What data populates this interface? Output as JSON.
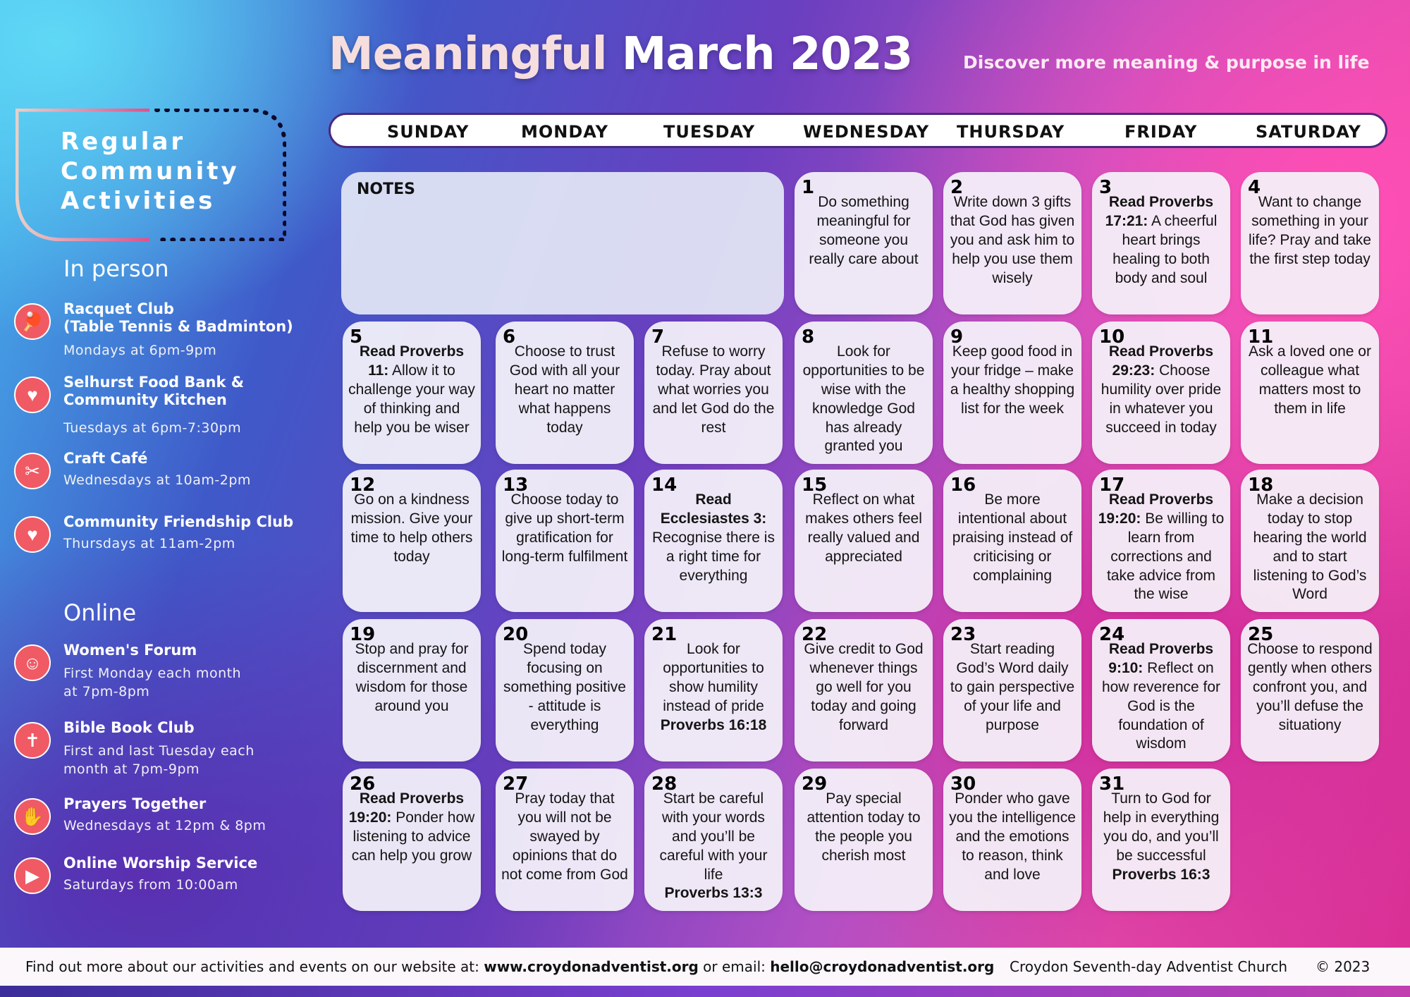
{
  "title_part1": "Meaningful",
  "title_part2": "March 2023",
  "subtitle": "Discover more meaning & purpose in life",
  "days": [
    "SUNDAY",
    "MONDAY",
    "TUESDAY",
    "WEDNESDAY",
    "THURSDAY",
    "FRIDAY",
    "SATURDAY"
  ],
  "notes_label": "NOTES",
  "sidebar": {
    "box_title": [
      "Regular",
      "Community",
      "Activities"
    ],
    "in_person": "In person",
    "online": "Online",
    "activities": [
      {
        "name": "Racquet Club\n(Table Tennis & Badminton)",
        "time": "Mondays at 6pm-9pm",
        "icon": "racquet-icon",
        "glyph": "🏓"
      },
      {
        "name": "Selhurst Food Bank &\nCommunity Kitchen",
        "time": "Tuesdays at 6pm-7:30pm",
        "icon": "food-basket-icon",
        "glyph": "♥"
      },
      {
        "name": "Craft Café",
        "time": "Wednesdays at 10am-2pm",
        "icon": "scissors-icon",
        "glyph": "✂"
      },
      {
        "name": "Community Friendship Club",
        "time": "Thursdays at 11am-2pm",
        "icon": "friendship-icon",
        "glyph": "♥"
      },
      {
        "name": "Women's Forum",
        "time": "First Monday each month\nat 7pm-8pm",
        "icon": "meditation-icon",
        "glyph": "☺"
      },
      {
        "name": "Bible Book Club",
        "time": "First and last Tuesday each\nmonth at 7pm-9pm",
        "icon": "bible-icon",
        "glyph": "✝"
      },
      {
        "name": "Prayers Together",
        "time": "Wednesdays at 12pm & 8pm",
        "icon": "praying-hands-icon",
        "glyph": "✋"
      },
      {
        "name": "Online Worship Service",
        "time": "Saturdays from 10:00am",
        "icon": "youtube-icon",
        "glyph": "▶"
      }
    ]
  },
  "cells": [
    {
      "n": "1",
      "b": "",
      "t": "Do something meaningful for someone you really care about",
      "e": ""
    },
    {
      "n": "2",
      "b": "",
      "t": "Write down 3 gifts that God has given you and ask him to help you use them wisely",
      "e": ""
    },
    {
      "n": "3",
      "b": "Read Proverbs 17:21:",
      "t": "A cheerful heart brings healing to both body and soul",
      "e": ""
    },
    {
      "n": "4",
      "b": "",
      "t": "Want to change something in your life? Pray and take the first step today",
      "e": ""
    },
    {
      "n": "5",
      "b": "Read Proverbs 11:",
      "t": "Allow it to challenge your way of thinking and help you be wiser",
      "e": ""
    },
    {
      "n": "6",
      "b": "",
      "t": "Choose to trust God with all your heart no matter what happens today",
      "e": ""
    },
    {
      "n": "7",
      "b": "",
      "t": "Refuse to worry today. Pray about what worries you and let God do the rest",
      "e": ""
    },
    {
      "n": "8",
      "b": "",
      "t": "Look for opportunities to be wise with the knowledge God has already granted you",
      "e": ""
    },
    {
      "n": "9",
      "b": "",
      "t": "Keep good food in your fridge – make a healthy shopping list for the week",
      "e": ""
    },
    {
      "n": "10",
      "b": "Read Proverbs 29:23:",
      "t": "Choose humility over pride in whatever you succeed in today",
      "e": ""
    },
    {
      "n": "11",
      "b": "",
      "t": "Ask a loved one or colleague what matters most to them in life",
      "e": ""
    },
    {
      "n": "12",
      "b": "",
      "t": "Go on a kindness mission. Give your time to help others today",
      "e": ""
    },
    {
      "n": "13",
      "b": "",
      "t": "Choose today to give up short-term gratification for long-term fulfilment",
      "e": ""
    },
    {
      "n": "14",
      "b": "Read Ecclesiastes 3:",
      "t": "Recognise there is a right time for everything",
      "e": ""
    },
    {
      "n": "15",
      "b": "",
      "t": "Reflect on what makes others feel really valued and appreciated",
      "e": ""
    },
    {
      "n": "16",
      "b": "",
      "t": "Be more intentional about praising instead of criticising or complaining",
      "e": ""
    },
    {
      "n": "17",
      "b": "Read Proverbs 19:20:",
      "t": "Be willing to learn from corrections and take advice from the wise",
      "e": ""
    },
    {
      "n": "18",
      "b": "",
      "t": "Make a decision today to stop hearing the world and to start listening to God’s Word",
      "e": ""
    },
    {
      "n": "19",
      "b": "",
      "t": "Stop and pray for discernment and wisdom for those around you",
      "e": ""
    },
    {
      "n": "20",
      "b": "",
      "t": "Spend today focusing on something positive - attitude is everything",
      "e": ""
    },
    {
      "n": "21",
      "b": "",
      "t": "Look for opportunities to show humility instead of pride",
      "e": "Proverbs 16:18"
    },
    {
      "n": "22",
      "b": "",
      "t": "Give credit to God whenever things go well for you today and going forward",
      "e": ""
    },
    {
      "n": "23",
      "b": "",
      "t": "Start reading God’s Word daily to gain perspective of your life and purpose",
      "e": ""
    },
    {
      "n": "24",
      "b": "Read Proverbs 9:10:",
      "t": "Reflect on how reverence for God is the foundation of wisdom",
      "e": ""
    },
    {
      "n": "25",
      "b": "",
      "t": "Choose to respond gently when others confront you, and you’ll defuse the situationy",
      "e": ""
    },
    {
      "n": "26",
      "b": "Read Proverbs 19:20:",
      "t": "Ponder how listening to advice can help you grow",
      "e": ""
    },
    {
      "n": "27",
      "b": "",
      "t": "Pray today that you will not be swayed by opinions that do not come from God",
      "e": ""
    },
    {
      "n": "28",
      "b": "",
      "t": "Start be careful with your words and you’ll be careful with your life",
      "e": "Proverbs 13:3"
    },
    {
      "n": "29",
      "b": "",
      "t": "Pay special attention today to the people you cherish most",
      "e": ""
    },
    {
      "n": "30",
      "b": "",
      "t": "Ponder who gave you the intelligence and the emotions to reason, think and love",
      "e": ""
    },
    {
      "n": "31",
      "b": "",
      "t": "Turn to God for help in everything you do, and you’ll be successful",
      "e": "Proverbs 16:3"
    }
  ],
  "footer": {
    "text1": "Find out more about our activities and events on our website at: ",
    "website": "www.croydonadventist.org",
    "text2": " or email: ",
    "email": "hello@croydonadventist.org",
    "church": "Croydon Seventh-day Adventist Church",
    "copyright": "© 2023"
  },
  "colors": {
    "header_border": "#4a2a7c",
    "icon_red": "#f05a64",
    "cell_bg": "#f5f3fa"
  }
}
